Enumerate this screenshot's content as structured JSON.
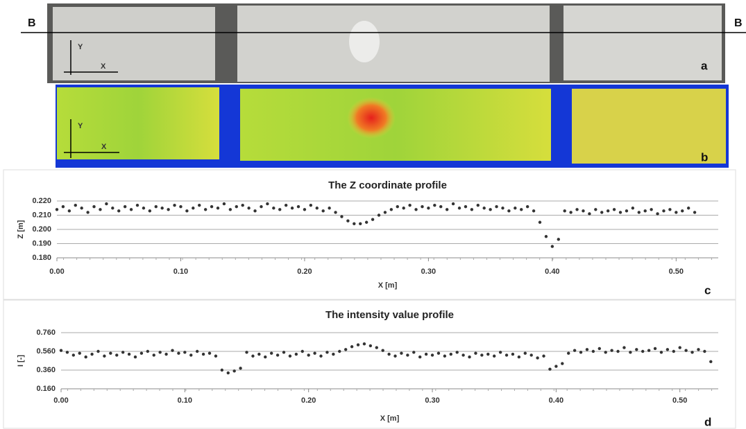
{
  "photo": {
    "section_left": "B",
    "section_right": "B",
    "axis_x": "X",
    "axis_y": "Y",
    "label": "a"
  },
  "intensity_map": {
    "axis_x": "X",
    "axis_y": "Y",
    "label": "b"
  },
  "chart_data": [
    {
      "type": "scatter",
      "title": "The Z coordinate profile",
      "x_label": "X [m]",
      "y_label": "Z [m]",
      "panel_label": "c",
      "color": "#333333",
      "grid": true,
      "xlim": [
        0,
        0.534
      ],
      "ylim": [
        0.18,
        0.22
      ],
      "xticks": [
        {
          "value": 0,
          "label": "0.00"
        },
        {
          "value": 0.1,
          "label": "0.10"
        },
        {
          "value": 0.2,
          "label": "0.20"
        },
        {
          "value": 0.3,
          "label": "0.30"
        },
        {
          "value": 0.4,
          "label": "0.40"
        },
        {
          "value": 0.5,
          "label": "0.50"
        }
      ],
      "yticks": [
        {
          "value": 0.18,
          "label": "0.180"
        },
        {
          "value": 0.19,
          "label": "0.190"
        },
        {
          "value": 0.2,
          "label": "0.200"
        },
        {
          "value": 0.21,
          "label": "0.210"
        },
        {
          "value": 0.22,
          "label": "0.220"
        }
      ],
      "x": [
        0,
        0.005,
        0.01,
        0.015,
        0.02,
        0.025,
        0.03,
        0.035,
        0.04,
        0.045,
        0.05,
        0.055,
        0.06,
        0.065,
        0.07,
        0.075,
        0.08,
        0.085,
        0.09,
        0.095,
        0.1,
        0.105,
        0.11,
        0.115,
        0.12,
        0.125,
        0.13,
        0.135,
        0.14,
        0.145,
        0.15,
        0.155,
        0.16,
        0.165,
        0.17,
        0.175,
        0.18,
        0.185,
        0.19,
        0.195,
        0.2,
        0.205,
        0.21,
        0.215,
        0.22,
        0.225,
        0.23,
        0.235,
        0.24,
        0.245,
        0.25,
        0.255,
        0.26,
        0.265,
        0.27,
        0.275,
        0.28,
        0.285,
        0.29,
        0.295,
        0.3,
        0.305,
        0.31,
        0.315,
        0.32,
        0.325,
        0.33,
        0.335,
        0.34,
        0.345,
        0.35,
        0.355,
        0.36,
        0.365,
        0.37,
        0.375,
        0.38,
        0.385,
        0.39,
        0.395,
        0.4,
        0.405,
        0.41,
        0.415,
        0.42,
        0.425,
        0.43,
        0.435,
        0.44,
        0.445,
        0.45,
        0.455,
        0.46,
        0.465,
        0.47,
        0.475,
        0.48,
        0.485,
        0.49,
        0.495,
        0.5,
        0.505,
        0.51,
        0.515
      ],
      "values": [
        0.214,
        0.216,
        0.213,
        0.217,
        0.215,
        0.212,
        0.216,
        0.214,
        0.218,
        0.215,
        0.213,
        0.216,
        0.214,
        0.217,
        0.215,
        0.213,
        0.216,
        0.215,
        0.214,
        0.217,
        0.216,
        0.213,
        0.215,
        0.217,
        0.214,
        0.216,
        0.215,
        0.218,
        0.214,
        0.216,
        0.217,
        0.215,
        0.213,
        0.216,
        0.218,
        0.215,
        0.214,
        0.217,
        0.215,
        0.216,
        0.214,
        0.217,
        0.215,
        0.213,
        0.215,
        0.212,
        0.209,
        0.206,
        0.204,
        0.204,
        0.205,
        0.207,
        0.21,
        0.212,
        0.214,
        0.216,
        0.215,
        0.217,
        0.214,
        0.216,
        0.215,
        0.217,
        0.216,
        0.214,
        0.218,
        0.215,
        0.216,
        0.214,
        0.217,
        0.215,
        0.214,
        0.216,
        0.215,
        0.213,
        0.215,
        0.214,
        0.216,
        0.213,
        0.205,
        0.195,
        0.188,
        0.193,
        0.213,
        0.212,
        0.214,
        0.213,
        0.211,
        0.214,
        0.212,
        0.213,
        0.214,
        0.212,
        0.213,
        0.215,
        0.212,
        0.213,
        0.214,
        0.211,
        0.213,
        0.214,
        0.212,
        0.213,
        0.215,
        0.212
      ]
    },
    {
      "type": "scatter",
      "title": "The intensity value profile",
      "x_label": "X [m]",
      "y_label": "I [-]",
      "panel_label": "d",
      "color": "#333333",
      "grid": true,
      "xlim": [
        0,
        0.531
      ],
      "ylim": [
        0.16,
        0.76
      ],
      "xticks": [
        {
          "value": 0,
          "label": "0.00"
        },
        {
          "value": 0.1,
          "label": "0.10"
        },
        {
          "value": 0.2,
          "label": "0.20"
        },
        {
          "value": 0.3,
          "label": "0.30"
        },
        {
          "value": 0.4,
          "label": "0.40"
        },
        {
          "value": 0.5,
          "label": "0.50"
        }
      ],
      "yticks": [
        {
          "value": 0.16,
          "label": "0.160"
        },
        {
          "value": 0.36,
          "label": "0.360"
        },
        {
          "value": 0.56,
          "label": "0.560"
        },
        {
          "value": 0.76,
          "label": "0.760"
        }
      ],
      "x": [
        0,
        0.005,
        0.01,
        0.015,
        0.02,
        0.025,
        0.03,
        0.035,
        0.04,
        0.045,
        0.05,
        0.055,
        0.06,
        0.065,
        0.07,
        0.075,
        0.08,
        0.085,
        0.09,
        0.095,
        0.1,
        0.105,
        0.11,
        0.115,
        0.12,
        0.125,
        0.13,
        0.135,
        0.14,
        0.145,
        0.15,
        0.155,
        0.16,
        0.165,
        0.17,
        0.175,
        0.18,
        0.185,
        0.19,
        0.195,
        0.2,
        0.205,
        0.21,
        0.215,
        0.22,
        0.225,
        0.23,
        0.235,
        0.24,
        0.245,
        0.25,
        0.255,
        0.26,
        0.265,
        0.27,
        0.275,
        0.28,
        0.285,
        0.29,
        0.295,
        0.3,
        0.305,
        0.31,
        0.315,
        0.32,
        0.325,
        0.33,
        0.335,
        0.34,
        0.345,
        0.35,
        0.355,
        0.36,
        0.365,
        0.37,
        0.375,
        0.38,
        0.385,
        0.39,
        0.395,
        0.4,
        0.405,
        0.41,
        0.415,
        0.42,
        0.425,
        0.43,
        0.435,
        0.44,
        0.445,
        0.45,
        0.455,
        0.46,
        0.465,
        0.47,
        0.475,
        0.48,
        0.485,
        0.49,
        0.495,
        0.5,
        0.505,
        0.51,
        0.515,
        0.52,
        0.525
      ],
      "values": [
        0.57,
        0.55,
        0.52,
        0.54,
        0.5,
        0.53,
        0.56,
        0.51,
        0.54,
        0.52,
        0.55,
        0.53,
        0.5,
        0.54,
        0.56,
        0.52,
        0.55,
        0.53,
        0.57,
        0.54,
        0.55,
        0.52,
        0.56,
        0.53,
        0.54,
        0.51,
        0.36,
        0.33,
        0.35,
        0.38,
        0.55,
        0.51,
        0.53,
        0.5,
        0.54,
        0.52,
        0.55,
        0.51,
        0.53,
        0.56,
        0.52,
        0.54,
        0.51,
        0.55,
        0.53,
        0.56,
        0.58,
        0.61,
        0.63,
        0.64,
        0.62,
        0.6,
        0.57,
        0.53,
        0.51,
        0.54,
        0.52,
        0.55,
        0.5,
        0.53,
        0.52,
        0.54,
        0.51,
        0.53,
        0.55,
        0.52,
        0.5,
        0.54,
        0.52,
        0.53,
        0.51,
        0.55,
        0.52,
        0.53,
        0.5,
        0.54,
        0.52,
        0.49,
        0.51,
        0.37,
        0.4,
        0.43,
        0.54,
        0.57,
        0.55,
        0.58,
        0.56,
        0.59,
        0.55,
        0.57,
        0.56,
        0.6,
        0.55,
        0.58,
        0.56,
        0.57,
        0.59,
        0.55,
        0.58,
        0.56,
        0.6,
        0.57,
        0.55,
        0.58,
        0.56,
        0.45
      ]
    }
  ]
}
